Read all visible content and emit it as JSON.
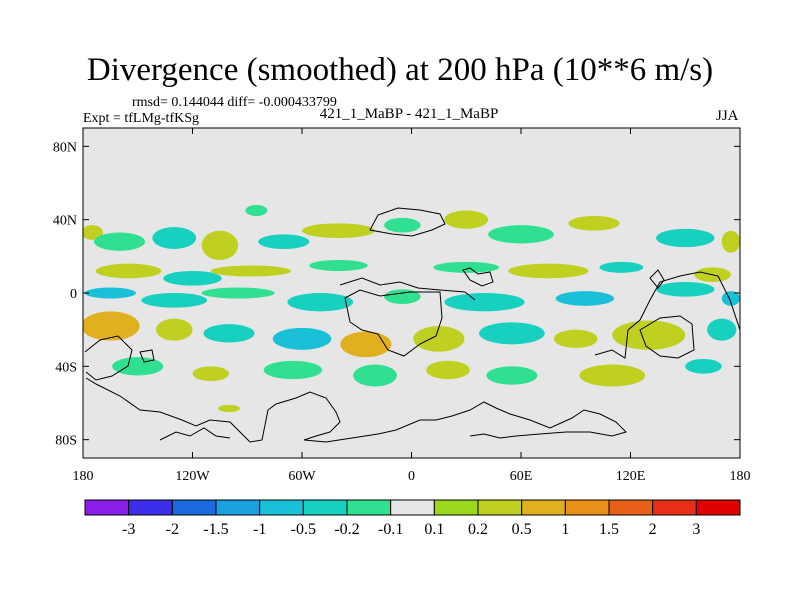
{
  "title": "Divergence (smoothed) at 200 hPa (10**6 m/s)",
  "stats_text": "rmsd= 0.144044 diff= -0.000433799",
  "expt_text": "Expt = tfLMg-tfKSg",
  "cases_text": "421_1_MaBP - 421_1_MaBP",
  "season": "JJA",
  "chart_data": {
    "type": "heatmap",
    "title": "Divergence (smoothed) at 200 hPa (10**6 m/s)",
    "xlabel": "",
    "ylabel": "",
    "xlim": [
      -180,
      180
    ],
    "ylim": [
      -90,
      90
    ],
    "x_ticks": [
      {
        "value": -180,
        "label": "180"
      },
      {
        "value": -120,
        "label": "120W"
      },
      {
        "value": -60,
        "label": "60W"
      },
      {
        "value": 0,
        "label": "0"
      },
      {
        "value": 60,
        "label": "60E"
      },
      {
        "value": 120,
        "label": "120E"
      },
      {
        "value": 180,
        "label": "180"
      }
    ],
    "y_ticks": [
      {
        "value": 80,
        "label": "80N"
      },
      {
        "value": 40,
        "label": "40N"
      },
      {
        "value": 0,
        "label": "0"
      },
      {
        "value": -40,
        "label": "40S"
      },
      {
        "value": -80,
        "label": "80S"
      }
    ],
    "background_color": "#e6e6e6",
    "colorbar": {
      "colors": [
        "#8a1ee8",
        "#3c2ee8",
        "#1a6ae0",
        "#1aa0e0",
        "#1ac0d8",
        "#18d0c0",
        "#30e090",
        "#e6e6e6",
        "#9ad81e",
        "#c0d020",
        "#e0b020",
        "#e89018",
        "#e86018",
        "#e83018",
        "#e00000"
      ],
      "labels": [
        "-3",
        "-2",
        "-1.5",
        "-1",
        "-0.5",
        "-0.2",
        "-0.1",
        "0.1",
        "0.2",
        "0.5",
        "1",
        "1.5",
        "2",
        "3"
      ]
    },
    "regions": [
      {
        "lon": -175,
        "lat": 33,
        "rx": 6,
        "ry": 4,
        "level": "0.2"
      },
      {
        "lon": -160,
        "lat": 28,
        "rx": 14,
        "ry": 5,
        "level": "-0.1"
      },
      {
        "lon": -130,
        "lat": 30,
        "rx": 12,
        "ry": 6,
        "level": "-0.2"
      },
      {
        "lon": -105,
        "lat": 26,
        "rx": 10,
        "ry": 8,
        "level": "0.2"
      },
      {
        "lon": -85,
        "lat": 45,
        "rx": 6,
        "ry": 3,
        "level": "-0.1"
      },
      {
        "lon": -70,
        "lat": 28,
        "rx": 14,
        "ry": 4,
        "level": "-0.2"
      },
      {
        "lon": -40,
        "lat": 34,
        "rx": 20,
        "ry": 4,
        "level": "0.2"
      },
      {
        "lon": -5,
        "lat": 37,
        "rx": 10,
        "ry": 4,
        "level": "-0.1"
      },
      {
        "lon": 30,
        "lat": 40,
        "rx": 12,
        "ry": 5,
        "level": "0.2"
      },
      {
        "lon": 60,
        "lat": 32,
        "rx": 18,
        "ry": 5,
        "level": "-0.1"
      },
      {
        "lon": 100,
        "lat": 38,
        "rx": 14,
        "ry": 4,
        "level": "0.2"
      },
      {
        "lon": 150,
        "lat": 30,
        "rx": 16,
        "ry": 5,
        "level": "-0.2"
      },
      {
        "lon": 175,
        "lat": 28,
        "rx": 5,
        "ry": 6,
        "level": "0.2"
      },
      {
        "lon": -155,
        "lat": 12,
        "rx": 18,
        "ry": 4,
        "level": "0.2"
      },
      {
        "lon": -120,
        "lat": 8,
        "rx": 16,
        "ry": 4,
        "level": "-0.2"
      },
      {
        "lon": -88,
        "lat": 12,
        "rx": 22,
        "ry": 3,
        "level": "0.2"
      },
      {
        "lon": -40,
        "lat": 15,
        "rx": 16,
        "ry": 3,
        "level": "-0.1"
      },
      {
        "lon": 30,
        "lat": 14,
        "rx": 18,
        "ry": 3,
        "level": "-0.1"
      },
      {
        "lon": 75,
        "lat": 12,
        "rx": 22,
        "ry": 4,
        "level": "0.2"
      },
      {
        "lon": 115,
        "lat": 14,
        "rx": 12,
        "ry": 3,
        "level": "-0.2"
      },
      {
        "lon": 165,
        "lat": 10,
        "rx": 10,
        "ry": 4,
        "level": "0.2"
      },
      {
        "lon": -165,
        "lat": 0,
        "rx": 14,
        "ry": 3,
        "level": "-0.5"
      },
      {
        "lon": -130,
        "lat": -4,
        "rx": 18,
        "ry": 4,
        "level": "-0.2"
      },
      {
        "lon": -95,
        "lat": 0,
        "rx": 20,
        "ry": 3,
        "level": "-0.1"
      },
      {
        "lon": -50,
        "lat": -5,
        "rx": 18,
        "ry": 5,
        "level": "-0.2"
      },
      {
        "lon": -5,
        "lat": -2,
        "rx": 10,
        "ry": 4,
        "level": "-0.1"
      },
      {
        "lon": 40,
        "lat": -5,
        "rx": 22,
        "ry": 5,
        "level": "-0.2"
      },
      {
        "lon": 95,
        "lat": -3,
        "rx": 16,
        "ry": 4,
        "level": "-0.5"
      },
      {
        "lon": 150,
        "lat": 2,
        "rx": 16,
        "ry": 4,
        "level": "-0.2"
      },
      {
        "lon": 175,
        "lat": -3,
        "rx": 5,
        "ry": 4,
        "level": "-0.5"
      },
      {
        "lon": -165,
        "lat": -18,
        "rx": 16,
        "ry": 8,
        "level": "0.5"
      },
      {
        "lon": -130,
        "lat": -20,
        "rx": 10,
        "ry": 6,
        "level": "0.2"
      },
      {
        "lon": -100,
        "lat": -22,
        "rx": 14,
        "ry": 5,
        "level": "-0.2"
      },
      {
        "lon": -60,
        "lat": -25,
        "rx": 16,
        "ry": 6,
        "level": "-0.5"
      },
      {
        "lon": -25,
        "lat": -28,
        "rx": 14,
        "ry": 7,
        "level": "0.5"
      },
      {
        "lon": 15,
        "lat": -25,
        "rx": 14,
        "ry": 7,
        "level": "0.2"
      },
      {
        "lon": 55,
        "lat": -22,
        "rx": 18,
        "ry": 6,
        "level": "-0.2"
      },
      {
        "lon": 90,
        "lat": -25,
        "rx": 12,
        "ry": 5,
        "level": "0.2"
      },
      {
        "lon": 130,
        "lat": -23,
        "rx": 20,
        "ry": 8,
        "level": "0.2"
      },
      {
        "lon": 170,
        "lat": -20,
        "rx": 8,
        "ry": 6,
        "level": "-0.2"
      },
      {
        "lon": -150,
        "lat": -40,
        "rx": 14,
        "ry": 5,
        "level": "-0.1"
      },
      {
        "lon": -110,
        "lat": -44,
        "rx": 10,
        "ry": 4,
        "level": "0.2"
      },
      {
        "lon": -65,
        "lat": -42,
        "rx": 16,
        "ry": 5,
        "level": "-0.1"
      },
      {
        "lon": -20,
        "lat": -45,
        "rx": 12,
        "ry": 6,
        "level": "-0.1"
      },
      {
        "lon": 20,
        "lat": -42,
        "rx": 12,
        "ry": 5,
        "level": "0.2"
      },
      {
        "lon": 55,
        "lat": -45,
        "rx": 14,
        "ry": 5,
        "level": "-0.1"
      },
      {
        "lon": 110,
        "lat": -45,
        "rx": 18,
        "ry": 6,
        "level": "0.2"
      },
      {
        "lon": 160,
        "lat": -40,
        "rx": 10,
        "ry": 4,
        "level": "-0.2"
      },
      {
        "lon": -100,
        "lat": -63,
        "rx": 6,
        "ry": 2,
        "level": "0.2"
      }
    ]
  }
}
